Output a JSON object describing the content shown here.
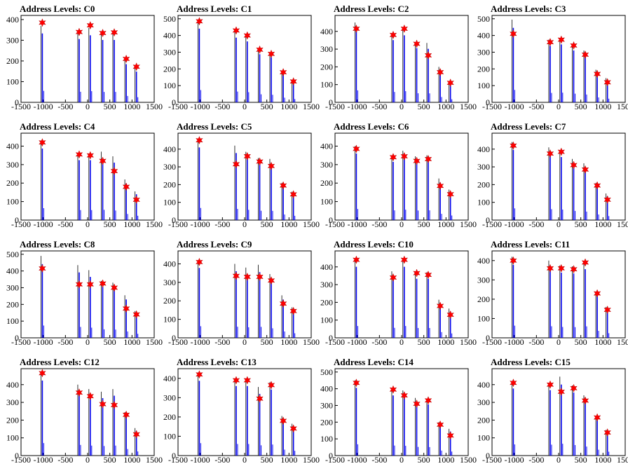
{
  "chart_data": [
    {
      "type": "bar",
      "title": "Address Levels: C0",
      "xlim": [
        -1500,
        1500
      ],
      "ylim": [
        0,
        420
      ],
      "yticks": [
        0,
        100,
        200,
        300,
        400
      ],
      "xticks": [
        "-1500",
        "-1000",
        "-500",
        "0",
        "500",
        "1000",
        "1500"
      ],
      "x": [
        -1020,
        -190,
        60,
        340,
        600,
        870,
        1100
      ],
      "values": [
        370,
        340,
        360,
        335,
        335,
        205,
        165
      ],
      "markers": [
        385,
        340,
        372,
        335,
        338,
        210,
        172
      ],
      "grid": false
    },
    {
      "type": "bar",
      "title": "Address Levels: C1",
      "xlim": [
        -1500,
        1500
      ],
      "ylim": [
        0,
        520
      ],
      "yticks": [
        0,
        100,
        200,
        300,
        400,
        500
      ],
      "xticks": [
        "-1500",
        "-1000",
        "-500",
        "0",
        "500",
        "1000",
        "1500"
      ],
      "x": [
        -1020,
        -190,
        60,
        340,
        600,
        870,
        1100
      ],
      "values": [
        490,
        430,
        405,
        320,
        300,
        185,
        130
      ],
      "markers": [
        485,
        430,
        400,
        315,
        290,
        180,
        125
      ],
      "grid": false
    },
    {
      "type": "bar",
      "title": "Address Levels: C2",
      "xlim": [
        -1500,
        1500
      ],
      "ylim": [
        0,
        490
      ],
      "yticks": [
        0,
        100,
        200,
        300,
        400
      ],
      "xticks": [
        "-1500",
        "-1000",
        "-500",
        "0",
        "500",
        "1000",
        "1500"
      ],
      "x": [
        -1020,
        -190,
        60,
        340,
        600,
        870,
        1100
      ],
      "values": [
        450,
        390,
        420,
        340,
        335,
        200,
        115
      ],
      "markers": [
        415,
        380,
        415,
        330,
        265,
        170,
        110
      ],
      "grid": false
    },
    {
      "type": "bar",
      "title": "Address Levels: C3",
      "xlim": [
        -1500,
        1500
      ],
      "ylim": [
        0,
        520
      ],
      "yticks": [
        0,
        100,
        200,
        300,
        400,
        500
      ],
      "xticks": [
        "-1500",
        "-1000",
        "-500",
        "0",
        "500",
        "1000",
        "1500"
      ],
      "x": [
        -1020,
        -190,
        60,
        340,
        600,
        870,
        1100
      ],
      "values": [
        495,
        375,
        385,
        345,
        310,
        195,
        145
      ],
      "markers": [
        410,
        360,
        375,
        340,
        285,
        170,
        120
      ],
      "grid": false
    },
    {
      "type": "bar",
      "title": "Address Levels: C4",
      "xlim": [
        -1500,
        1500
      ],
      "ylim": [
        0,
        470
      ],
      "yticks": [
        0,
        100,
        200,
        300,
        400
      ],
      "xticks": [
        "-1500",
        "-1000",
        "-500",
        "0",
        "500",
        "1000",
        "1500"
      ],
      "x": [
        -1020,
        -190,
        60,
        340,
        600,
        870,
        1100
      ],
      "values": [
        430,
        360,
        360,
        370,
        345,
        220,
        155
      ],
      "markers": [
        420,
        355,
        350,
        320,
        265,
        180,
        110
      ],
      "grid": false
    },
    {
      "type": "bar",
      "title": "Address Levels: C5",
      "xlim": [
        -1500,
        1500
      ],
      "ylim": [
        0,
        490
      ],
      "yticks": [
        0,
        100,
        200,
        300,
        400
      ],
      "xticks": [
        "-1500",
        "-1000",
        "-500",
        "0",
        "500",
        "1000",
        "1500"
      ],
      "x": [
        -1020,
        -190,
        60,
        340,
        600,
        870,
        1100
      ],
      "values": [
        455,
        420,
        385,
        350,
        345,
        210,
        160
      ],
      "markers": [
        450,
        315,
        360,
        330,
        305,
        195,
        145
      ],
      "grid": false
    },
    {
      "type": "bar",
      "title": "Address Levels: C6",
      "xlim": [
        -1500,
        1500
      ],
      "ylim": [
        0,
        470
      ],
      "yticks": [
        0,
        100,
        200,
        300,
        400
      ],
      "xticks": [
        "-1500",
        "-1000",
        "-500",
        "0",
        "500",
        "1000",
        "1500"
      ],
      "x": [
        -1020,
        -190,
        60,
        340,
        600,
        870,
        1100
      ],
      "values": [
        400,
        350,
        375,
        345,
        350,
        225,
        165
      ],
      "markers": [
        385,
        340,
        345,
        320,
        330,
        185,
        140
      ],
      "grid": false
    },
    {
      "type": "bar",
      "title": "Address Levels: C7",
      "xlim": [
        -1500,
        1500
      ],
      "ylim": [
        0,
        490
      ],
      "yticks": [
        0,
        100,
        200,
        300,
        400
      ],
      "xticks": [
        "-1500",
        "-1000",
        "-500",
        "0",
        "500",
        "1000",
        "1500"
      ],
      "x": [
        -1020,
        -190,
        60,
        340,
        600,
        870,
        1100
      ],
      "values": [
        440,
        410,
        395,
        345,
        320,
        210,
        150
      ],
      "markers": [
        420,
        375,
        385,
        310,
        285,
        195,
        115
      ],
      "grid": false
    },
    {
      "type": "bar",
      "title": "Address Levels: C8",
      "xlim": [
        -1500,
        1500
      ],
      "ylim": [
        0,
        520
      ],
      "yticks": [
        0,
        100,
        200,
        300,
        400,
        500
      ],
      "xticks": [
        "-1500",
        "-1000",
        "-500",
        "0",
        "500",
        "1000",
        "1500"
      ],
      "x": [
        -1020,
        -190,
        60,
        340,
        600,
        870,
        1100
      ],
      "values": [
        490,
        435,
        405,
        340,
        330,
        255,
        160
      ],
      "markers": [
        415,
        320,
        320,
        325,
        300,
        175,
        140
      ],
      "grid": false
    },
    {
      "type": "bar",
      "title": "Address Levels: C9",
      "xlim": [
        -1500,
        1500
      ],
      "ylim": [
        0,
        470
      ],
      "yticks": [
        0,
        100,
        200,
        300,
        400
      ],
      "xticks": [
        "-1500",
        "-1000",
        "-500",
        "0",
        "500",
        "1000",
        "1500"
      ],
      "x": [
        -1020,
        -190,
        60,
        340,
        600,
        870,
        1100
      ],
      "values": [
        420,
        400,
        380,
        395,
        345,
        230,
        165
      ],
      "markers": [
        410,
        335,
        330,
        330,
        310,
        185,
        145
      ],
      "grid": false
    },
    {
      "type": "bar",
      "title": "Address Levels: C10",
      "xlim": [
        -1500,
        1500
      ],
      "ylim": [
        0,
        490
      ],
      "yticks": [
        0,
        100,
        200,
        300,
        400
      ],
      "xticks": [
        "-1500",
        "-1000",
        "-500",
        "0",
        "500",
        "1000",
        "1500"
      ],
      "x": [
        -1020,
        -190,
        60,
        340,
        600,
        870,
        1100
      ],
      "values": [
        445,
        375,
        445,
        370,
        370,
        215,
        165
      ],
      "markers": [
        440,
        340,
        440,
        365,
        355,
        180,
        130
      ],
      "grid": false
    },
    {
      "type": "bar",
      "title": "Address Levels: C11",
      "xlim": [
        -1500,
        1500
      ],
      "ylim": [
        0,
        450
      ],
      "yticks": [
        0,
        100,
        200,
        300,
        400
      ],
      "xticks": [
        "-1500",
        "-1000",
        "-500",
        "0",
        "500",
        "1000",
        "1500"
      ],
      "x": [
        -1020,
        -190,
        60,
        340,
        600,
        870,
        1100
      ],
      "values": [
        420,
        400,
        375,
        370,
        395,
        240,
        160
      ],
      "markers": [
        400,
        360,
        360,
        355,
        390,
        230,
        145
      ],
      "grid": false
    },
    {
      "type": "bar",
      "title": "Address Levels: C12",
      "xlim": [
        -1500,
        1500
      ],
      "ylim": [
        0,
        490
      ],
      "yticks": [
        0,
        100,
        200,
        300,
        400
      ],
      "xticks": [
        "-1500",
        "-1000",
        "-500",
        "0",
        "500",
        "1000",
        "1500"
      ],
      "x": [
        -1020,
        -190,
        60,
        340,
        600,
        870,
        1100
      ],
      "values": [
        470,
        400,
        375,
        360,
        375,
        245,
        155
      ],
      "markers": [
        465,
        355,
        335,
        290,
        285,
        230,
        120
      ],
      "grid": false
    },
    {
      "type": "bar",
      "title": "Address Levels: C13",
      "xlim": [
        -1500,
        1500
      ],
      "ylim": [
        0,
        450
      ],
      "yticks": [
        0,
        100,
        200,
        300,
        400
      ],
      "xticks": [
        "-1500",
        "-1000",
        "-500",
        "0",
        "500",
        "1000",
        "1500"
      ],
      "x": [
        -1020,
        -190,
        60,
        340,
        600,
        870,
        1100
      ],
      "values": [
        430,
        400,
        400,
        355,
        380,
        205,
        165
      ],
      "markers": [
        420,
        390,
        390,
        295,
        365,
        180,
        140
      ],
      "grid": false
    },
    {
      "type": "bar",
      "title": "Address Levels: C14",
      "xlim": [
        -1500,
        1500
      ],
      "ylim": [
        0,
        520
      ],
      "yticks": [
        0,
        100,
        200,
        300,
        400,
        500
      ],
      "xticks": [
        "-1500",
        "-1000",
        "-500",
        "0",
        "500",
        "1000",
        "1500"
      ],
      "x": [
        -1020,
        -190,
        60,
        340,
        600,
        870,
        1100
      ],
      "values": [
        450,
        400,
        390,
        345,
        340,
        200,
        160
      ],
      "markers": [
        435,
        395,
        360,
        310,
        330,
        185,
        120
      ],
      "grid": false
    },
    {
      "type": "bar",
      "title": "Address Levels: C15",
      "xlim": [
        -1500,
        1500
      ],
      "ylim": [
        0,
        490
      ],
      "yticks": [
        0,
        100,
        200,
        300,
        400
      ],
      "xticks": [
        "-1500",
        "-1000",
        "-500",
        "0",
        "500",
        "1000",
        "1500"
      ],
      "x": [
        -1020,
        -190,
        60,
        340,
        600,
        870,
        1100
      ],
      "values": [
        420,
        410,
        445,
        395,
        340,
        220,
        145
      ],
      "markers": [
        410,
        400,
        360,
        380,
        310,
        215,
        130
      ],
      "grid": false
    }
  ],
  "colors": {
    "bar": "#0000ee",
    "spike": "#000000",
    "marker": "#ff0000",
    "axis": "#000000"
  }
}
